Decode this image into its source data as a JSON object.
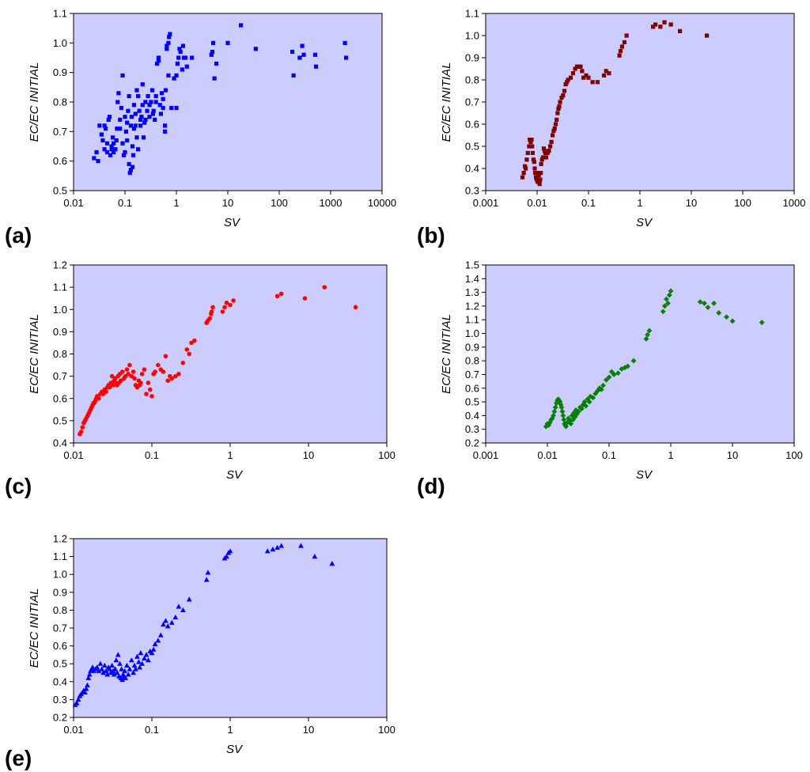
{
  "figure": {
    "description_labels": [
      "(a)",
      "(b)",
      "(c)",
      "(d)",
      "(e)"
    ]
  },
  "chart_data": [
    {
      "panel_label": "(a)",
      "type": "scatter",
      "marker": "square",
      "color": "#0000ff",
      "background": "#ccccff",
      "xlabel": "SV",
      "ylabel": "EC/EC INITIAL",
      "xscale": "log",
      "xlim": [
        0.01,
        10000
      ],
      "ylim": [
        0.5,
        1.1
      ],
      "xticks": [
        "0.01",
        "0.1",
        "1",
        "10",
        "100",
        "1000",
        "10000"
      ],
      "yticks": [
        "0.5",
        "0.6",
        "0.7",
        "0.8",
        "0.9",
        "1.0",
        "1.1"
      ],
      "x": [
        0.025,
        0.028,
        0.03,
        0.032,
        0.035,
        0.037,
        0.04,
        0.04,
        0.042,
        0.045,
        0.045,
        0.048,
        0.05,
        0.052,
        0.055,
        0.055,
        0.058,
        0.06,
        0.06,
        0.065,
        0.068,
        0.07,
        0.072,
        0.075,
        0.08,
        0.08,
        0.085,
        0.09,
        0.09,
        0.095,
        0.1,
        0.1,
        0.105,
        0.11,
        0.11,
        0.115,
        0.12,
        0.12,
        0.125,
        0.13,
        0.13,
        0.135,
        0.14,
        0.14,
        0.145,
        0.15,
        0.15,
        0.16,
        0.16,
        0.17,
        0.17,
        0.18,
        0.18,
        0.19,
        0.2,
        0.2,
        0.21,
        0.22,
        0.22,
        0.23,
        0.24,
        0.25,
        0.25,
        0.27,
        0.28,
        0.3,
        0.3,
        0.32,
        0.34,
        0.35,
        0.36,
        0.38,
        0.4,
        0.4,
        0.42,
        0.45,
        0.45,
        0.48,
        0.5,
        0.52,
        0.55,
        0.55,
        0.6,
        0.6,
        0.62,
        0.65,
        0.65,
        0.7,
        0.7,
        0.72,
        0.75,
        0.8,
        0.9,
        1.0,
        1.0,
        1.05,
        1.1,
        1.15,
        1.2,
        1.3,
        1.35,
        1.4,
        1.5,
        1.6,
        2.0,
        4.8,
        5.0,
        5.2,
        5.5,
        6.0,
        10,
        18,
        35,
        180,
        190,
        250,
        280,
        300,
        500,
        520,
        1900,
        2000
      ],
      "y": [
        0.61,
        0.63,
        0.6,
        0.72,
        0.69,
        0.67,
        0.72,
        0.64,
        0.71,
        0.63,
        0.66,
        0.74,
        0.75,
        0.62,
        0.65,
        0.64,
        0.68,
        0.63,
        0.66,
        0.64,
        0.67,
        0.71,
        0.8,
        0.83,
        0.71,
        0.74,
        0.78,
        0.89,
        0.66,
        0.62,
        0.63,
        0.75,
        0.7,
        0.73,
        0.67,
        0.77,
        0.59,
        0.82,
        0.56,
        0.57,
        0.72,
        0.75,
        0.58,
        0.65,
        0.62,
        0.71,
        0.79,
        0.76,
        0.72,
        0.84,
        0.68,
        0.64,
        0.82,
        0.77,
        0.74,
        0.72,
        0.75,
        0.79,
        0.86,
        0.68,
        0.73,
        0.74,
        0.8,
        0.77,
        0.82,
        0.75,
        0.79,
        0.8,
        0.84,
        0.76,
        0.77,
        0.74,
        0.8,
        0.82,
        0.93,
        0.94,
        0.95,
        0.79,
        0.76,
        0.83,
        0.81,
        0.78,
        0.7,
        0.72,
        0.84,
        0.99,
        0.98,
        1.0,
        0.89,
        1.02,
        1.03,
        0.78,
        0.88,
        0.89,
        0.78,
        0.93,
        0.95,
        0.98,
        0.97,
        0.91,
        0.99,
        0.95,
        0.95,
        0.92,
        0.95,
        0.96,
        0.97,
        1.0,
        0.88,
        0.93,
        1.0,
        1.06,
        0.98,
        0.97,
        0.89,
        0.95,
        0.99,
        0.96,
        0.96,
        0.92,
        1.0,
        0.95
      ]
    },
    {
      "panel_label": "(b)",
      "type": "scatter",
      "marker": "square",
      "color": "#800000",
      "background": "#ccccff",
      "xlabel": "SV",
      "ylabel": "EC/EC INITIAL",
      "xscale": "log",
      "xlim": [
        0.001,
        1000
      ],
      "ylim": [
        0.3,
        1.1
      ],
      "xticks": [
        "0.001",
        "0.01",
        "0.1",
        "1",
        "10",
        "100",
        "1000"
      ],
      "yticks": [
        "0.3",
        "0.4",
        "0.5",
        "0.6",
        "0.7",
        "0.8",
        "0.9",
        "1.0",
        "1.1"
      ],
      "x": [
        0.0052,
        0.0055,
        0.0058,
        0.006,
        0.0063,
        0.0066,
        0.007,
        0.0072,
        0.0075,
        0.0078,
        0.008,
        0.0082,
        0.0085,
        0.0088,
        0.009,
        0.0092,
        0.0095,
        0.0098,
        0.01,
        0.0102,
        0.0105,
        0.0108,
        0.011,
        0.0112,
        0.0115,
        0.0118,
        0.012,
        0.0125,
        0.013,
        0.0135,
        0.014,
        0.0145,
        0.015,
        0.016,
        0.017,
        0.018,
        0.019,
        0.02,
        0.021,
        0.022,
        0.023,
        0.024,
        0.025,
        0.026,
        0.027,
        0.028,
        0.03,
        0.032,
        0.034,
        0.036,
        0.038,
        0.04,
        0.045,
        0.05,
        0.055,
        0.06,
        0.065,
        0.07,
        0.075,
        0.08,
        0.09,
        0.1,
        0.12,
        0.15,
        0.2,
        0.22,
        0.25,
        0.4,
        0.42,
        0.45,
        0.5,
        0.55,
        1.8,
        2.0,
        2.5,
        3.0,
        4.0,
        6.0,
        20.0
      ],
      "y": [
        0.36,
        0.38,
        0.41,
        0.4,
        0.44,
        0.47,
        0.5,
        0.53,
        0.52,
        0.53,
        0.5,
        0.47,
        0.44,
        0.43,
        0.4,
        0.38,
        0.36,
        0.35,
        0.36,
        0.34,
        0.38,
        0.37,
        0.34,
        0.33,
        0.35,
        0.38,
        0.42,
        0.44,
        0.45,
        0.49,
        0.48,
        0.47,
        0.45,
        0.47,
        0.48,
        0.5,
        0.52,
        0.55,
        0.57,
        0.58,
        0.6,
        0.62,
        0.65,
        0.67,
        0.68,
        0.7,
        0.72,
        0.73,
        0.75,
        0.78,
        0.79,
        0.8,
        0.81,
        0.83,
        0.85,
        0.86,
        0.86,
        0.86,
        0.84,
        0.81,
        0.82,
        0.81,
        0.79,
        0.79,
        0.82,
        0.84,
        0.83,
        0.91,
        0.93,
        0.95,
        0.97,
        1.0,
        1.04,
        1.05,
        1.04,
        1.06,
        1.05,
        1.02,
        1.0
      ]
    },
    {
      "panel_label": "(c)",
      "type": "scatter",
      "marker": "circle",
      "color": "#ff0000",
      "background": "#ccccff",
      "xlabel": "SV",
      "ylabel": "EC/EC INITIAL",
      "xscale": "log",
      "xlim": [
        0.01,
        100
      ],
      "ylim": [
        0.4,
        1.2
      ],
      "xticks": [
        "0.01",
        "0.1",
        "1",
        "10",
        "100"
      ],
      "yticks": [
        "0.4",
        "0.5",
        "0.6",
        "0.7",
        "0.8",
        "0.9",
        "1.0",
        "1.1",
        "1.2"
      ],
      "x": [
        0.012,
        0.0125,
        0.013,
        0.0135,
        0.014,
        0.0145,
        0.015,
        0.0155,
        0.016,
        0.0165,
        0.017,
        0.0175,
        0.018,
        0.0185,
        0.019,
        0.0195,
        0.02,
        0.021,
        0.022,
        0.023,
        0.024,
        0.025,
        0.026,
        0.027,
        0.028,
        0.029,
        0.03,
        0.031,
        0.032,
        0.033,
        0.034,
        0.035,
        0.036,
        0.037,
        0.038,
        0.039,
        0.04,
        0.042,
        0.044,
        0.046,
        0.048,
        0.05,
        0.052,
        0.055,
        0.058,
        0.06,
        0.062,
        0.065,
        0.068,
        0.07,
        0.072,
        0.075,
        0.08,
        0.085,
        0.09,
        0.095,
        0.1,
        0.105,
        0.11,
        0.12,
        0.13,
        0.14,
        0.15,
        0.16,
        0.17,
        0.18,
        0.2,
        0.22,
        0.25,
        0.28,
        0.3,
        0.32,
        0.35,
        0.5,
        0.52,
        0.55,
        0.57,
        0.58,
        0.6,
        0.8,
        0.85,
        0.9,
        1.0,
        1.1,
        4.0,
        4.5,
        9.0,
        16.0,
        40.0
      ],
      "y": [
        0.44,
        0.45,
        0.47,
        0.49,
        0.5,
        0.51,
        0.52,
        0.53,
        0.54,
        0.55,
        0.56,
        0.57,
        0.58,
        0.58,
        0.59,
        0.6,
        0.61,
        0.6,
        0.62,
        0.63,
        0.62,
        0.64,
        0.63,
        0.65,
        0.66,
        0.65,
        0.67,
        0.7,
        0.66,
        0.68,
        0.69,
        0.67,
        0.66,
        0.7,
        0.67,
        0.71,
        0.68,
        0.72,
        0.69,
        0.7,
        0.73,
        0.71,
        0.75,
        0.7,
        0.72,
        0.69,
        0.66,
        0.65,
        0.68,
        0.66,
        0.67,
        0.71,
        0.73,
        0.62,
        0.67,
        0.64,
        0.61,
        0.71,
        0.72,
        0.75,
        0.73,
        0.72,
        0.79,
        0.68,
        0.7,
        0.69,
        0.7,
        0.71,
        0.76,
        0.82,
        0.8,
        0.85,
        0.86,
        0.94,
        0.95,
        0.96,
        0.98,
        0.99,
        1.01,
        0.99,
        1.01,
        1.03,
        1.02,
        1.04,
        1.06,
        1.07,
        1.05,
        1.1,
        1.01
      ]
    },
    {
      "panel_label": "(d)",
      "type": "scatter",
      "marker": "diamond",
      "color": "#008000",
      "background": "#ccccff",
      "xlabel": "SV",
      "ylabel": "EC/EC INITIAL",
      "xscale": "log",
      "xlim": [
        0.001,
        100
      ],
      "ylim": [
        0.2,
        1.5
      ],
      "xticks": [
        "0.001",
        "0.01",
        "0.1",
        "1",
        "10",
        "100"
      ],
      "yticks": [
        "0.2",
        "0.3",
        "0.4",
        "0.5",
        "0.6",
        "0.7",
        "0.8",
        "0.9",
        "1.0",
        "1.1",
        "1.2",
        "1.3",
        "1.4",
        "1.5"
      ],
      "x": [
        0.0095,
        0.01,
        0.0105,
        0.011,
        0.0115,
        0.012,
        0.0125,
        0.013,
        0.0135,
        0.014,
        0.0145,
        0.015,
        0.0155,
        0.016,
        0.0165,
        0.017,
        0.0175,
        0.018,
        0.0185,
        0.019,
        0.0195,
        0.02,
        0.021,
        0.022,
        0.023,
        0.024,
        0.025,
        0.026,
        0.027,
        0.028,
        0.029,
        0.03,
        0.032,
        0.034,
        0.036,
        0.038,
        0.04,
        0.042,
        0.045,
        0.048,
        0.05,
        0.055,
        0.06,
        0.065,
        0.07,
        0.075,
        0.08,
        0.09,
        0.1,
        0.11,
        0.12,
        0.14,
        0.16,
        0.18,
        0.2,
        0.25,
        0.4,
        0.42,
        0.45,
        0.75,
        0.8,
        0.85,
        0.9,
        0.95,
        1.0,
        3.0,
        3.5,
        4.0,
        5.0,
        6.0,
        8.0,
        10.0,
        30.0
      ],
      "y": [
        0.32,
        0.34,
        0.33,
        0.35,
        0.37,
        0.38,
        0.4,
        0.43,
        0.46,
        0.49,
        0.51,
        0.52,
        0.51,
        0.5,
        0.48,
        0.46,
        0.43,
        0.4,
        0.37,
        0.34,
        0.33,
        0.32,
        0.35,
        0.38,
        0.36,
        0.34,
        0.4,
        0.37,
        0.42,
        0.39,
        0.44,
        0.41,
        0.43,
        0.46,
        0.45,
        0.48,
        0.5,
        0.47,
        0.52,
        0.5,
        0.54,
        0.53,
        0.56,
        0.58,
        0.6,
        0.59,
        0.62,
        0.66,
        0.68,
        0.72,
        0.7,
        0.71,
        0.74,
        0.75,
        0.76,
        0.8,
        0.96,
        0.99,
        1.02,
        1.16,
        1.2,
        1.25,
        1.22,
        1.28,
        1.31,
        1.23,
        1.22,
        1.19,
        1.22,
        1.15,
        1.12,
        1.09,
        1.08
      ]
    },
    {
      "panel_label": "(e)",
      "type": "scatter",
      "marker": "triangle",
      "color": "#0000ff",
      "background": "#ccccff",
      "xlabel": "SV",
      "ylabel": "EC/EC INITIAL",
      "xscale": "log",
      "xlim": [
        0.01,
        100
      ],
      "ylim": [
        0.2,
        1.2
      ],
      "xticks": [
        "0.01",
        "0.1",
        "1",
        "10",
        "100"
      ],
      "yticks": [
        "0.2",
        "0.3",
        "0.4",
        "0.5",
        "0.6",
        "0.7",
        "0.8",
        "0.9",
        "1.0",
        "1.1",
        "1.2"
      ],
      "x": [
        0.0105,
        0.011,
        0.0115,
        0.012,
        0.0125,
        0.013,
        0.0135,
        0.014,
        0.0145,
        0.015,
        0.0155,
        0.016,
        0.0165,
        0.017,
        0.0175,
        0.018,
        0.019,
        0.02,
        0.021,
        0.022,
        0.023,
        0.024,
        0.025,
        0.026,
        0.027,
        0.028,
        0.029,
        0.03,
        0.031,
        0.032,
        0.033,
        0.034,
        0.035,
        0.036,
        0.037,
        0.038,
        0.039,
        0.04,
        0.041,
        0.042,
        0.043,
        0.044,
        0.045,
        0.046,
        0.048,
        0.05,
        0.052,
        0.055,
        0.058,
        0.06,
        0.062,
        0.065,
        0.068,
        0.07,
        0.072,
        0.075,
        0.08,
        0.085,
        0.09,
        0.095,
        0.1,
        0.105,
        0.11,
        0.12,
        0.13,
        0.14,
        0.15,
        0.16,
        0.18,
        0.2,
        0.22,
        0.25,
        0.3,
        0.5,
        0.52,
        0.85,
        0.9,
        0.95,
        1.0,
        3.0,
        3.5,
        4.0,
        4.5,
        8.0,
        12.0,
        20.0
      ],
      "y": [
        0.27,
        0.28,
        0.3,
        0.32,
        0.33,
        0.34,
        0.35,
        0.34,
        0.36,
        0.38,
        0.42,
        0.44,
        0.46,
        0.47,
        0.48,
        0.46,
        0.47,
        0.48,
        0.46,
        0.5,
        0.47,
        0.45,
        0.49,
        0.46,
        0.44,
        0.48,
        0.47,
        0.45,
        0.49,
        0.46,
        0.44,
        0.47,
        0.52,
        0.45,
        0.55,
        0.43,
        0.5,
        0.42,
        0.47,
        0.41,
        0.44,
        0.43,
        0.46,
        0.42,
        0.49,
        0.44,
        0.47,
        0.52,
        0.45,
        0.49,
        0.47,
        0.54,
        0.51,
        0.48,
        0.56,
        0.5,
        0.53,
        0.55,
        0.52,
        0.57,
        0.56,
        0.58,
        0.61,
        0.63,
        0.66,
        0.72,
        0.74,
        0.71,
        0.73,
        0.76,
        0.82,
        0.8,
        0.86,
        0.97,
        1.01,
        1.09,
        1.1,
        1.12,
        1.13,
        1.13,
        1.14,
        1.15,
        1.16,
        1.16,
        1.1,
        1.06
      ]
    }
  ]
}
